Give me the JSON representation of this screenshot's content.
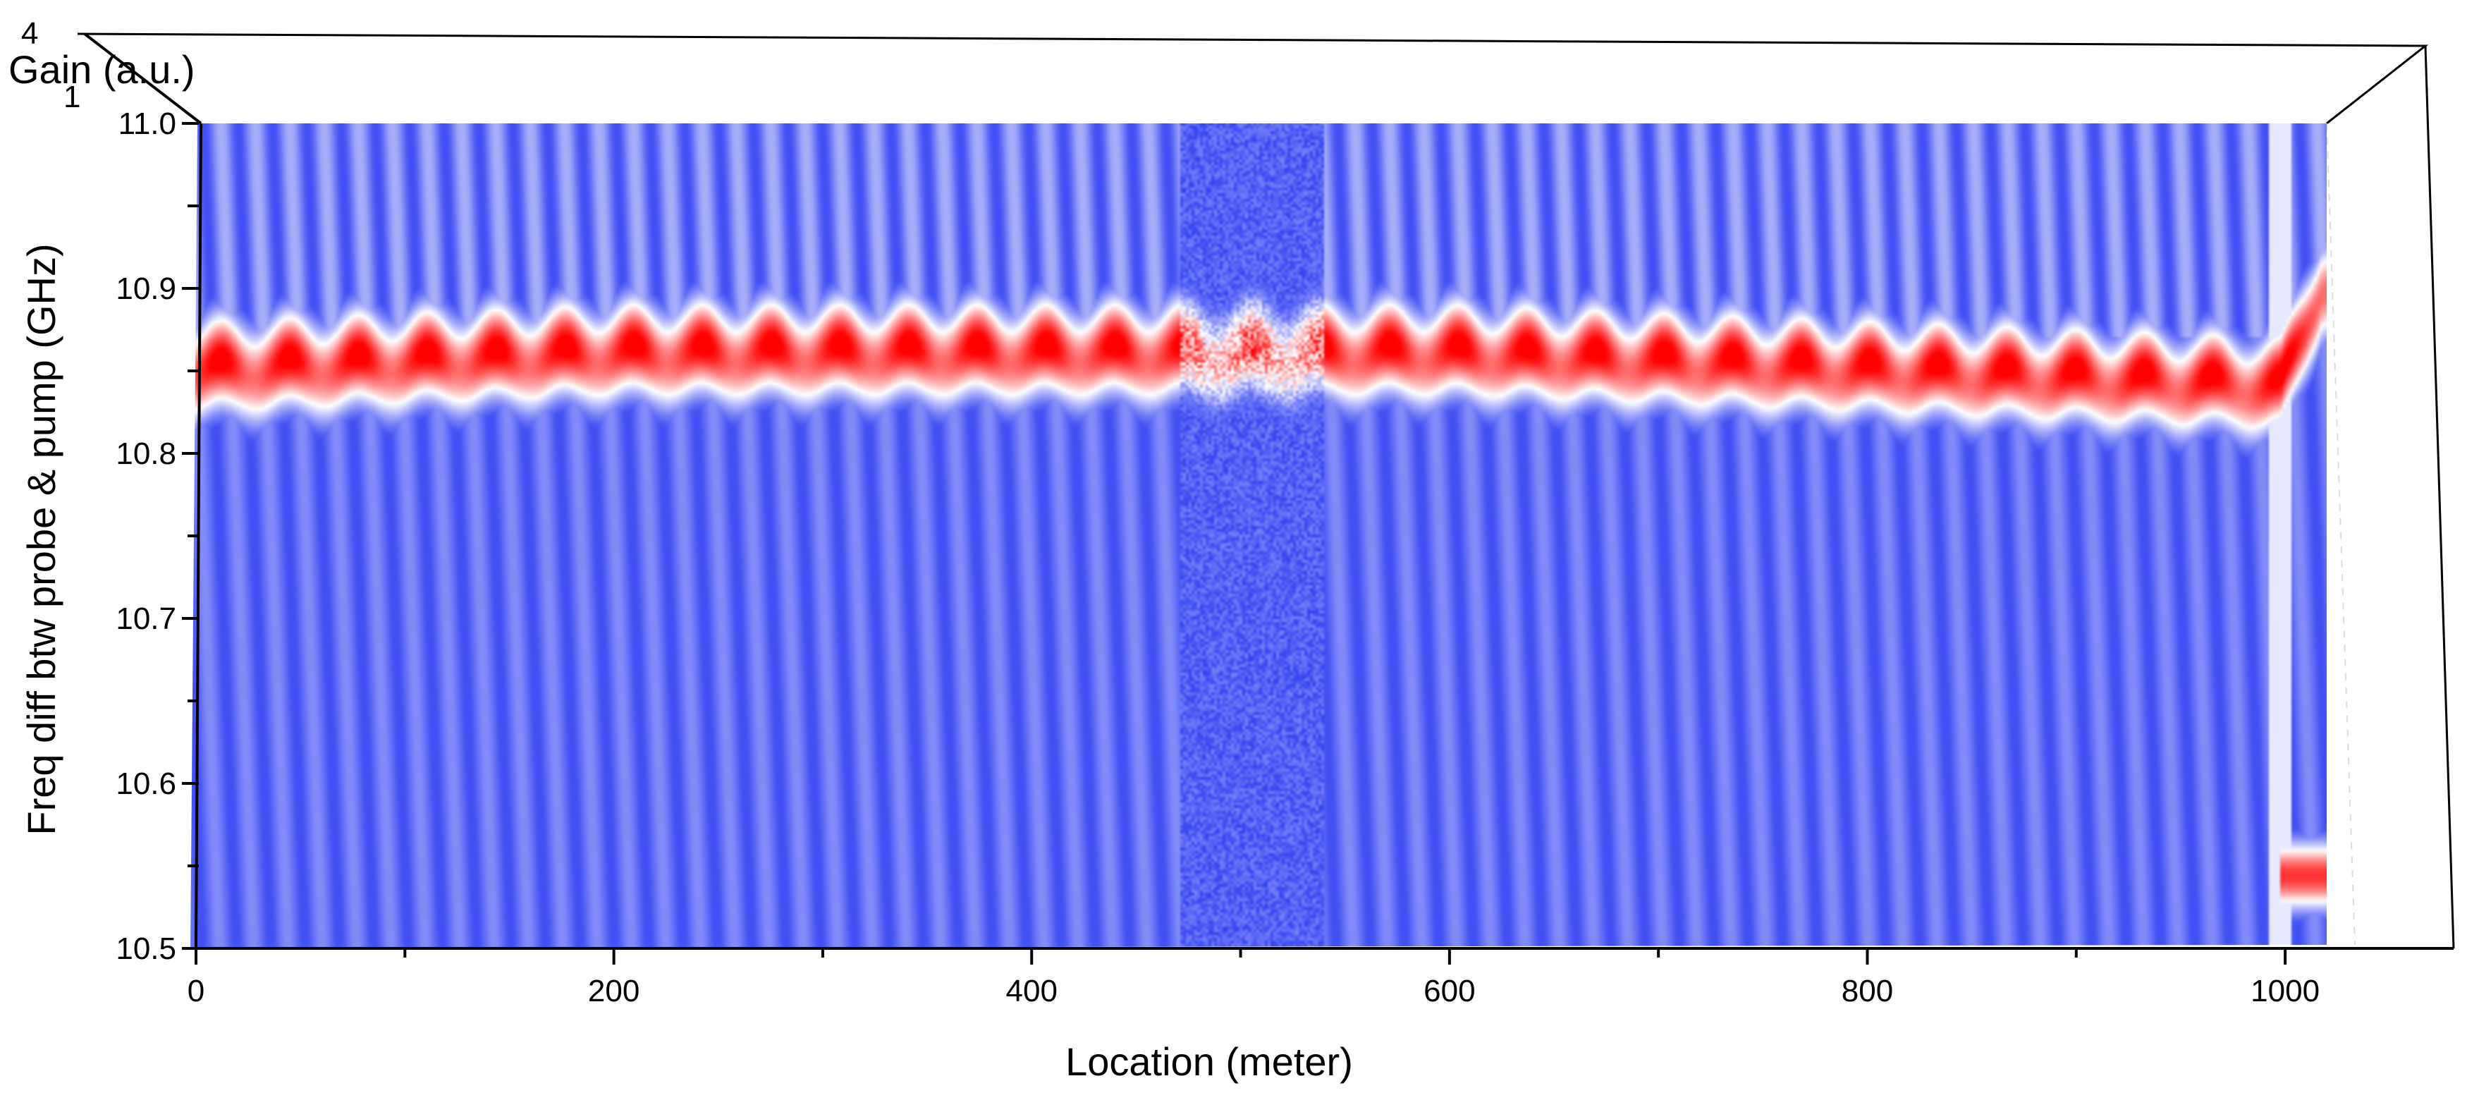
{
  "chart_data": {
    "type": "heatmap",
    "title": "",
    "xlabel": "Location (meter)",
    "ylabel": "Freq diff btw probe & pump (GHz)",
    "zlabel": "Gain (a.u.)",
    "xlim": [
      0,
      1030
    ],
    "ylim": [
      10.5,
      11.0
    ],
    "x_ticks": [
      "0",
      "200",
      "400",
      "600",
      "800",
      "1000"
    ],
    "y_ticks": [
      "10.5",
      "10.6",
      "10.7",
      "10.8",
      "10.9",
      "11.0"
    ],
    "z_ticks": [
      "4",
      "1"
    ],
    "colormap": {
      "low": "#0a1ef0",
      "mid": "#ffffff",
      "high": "#ff0000"
    },
    "gain_peak": {
      "description_points_x": [
        0,
        200,
        400,
        500,
        600,
        800,
        1000,
        1020
      ],
      "peak_freq_ghz": [
        10.85,
        10.86,
        10.86,
        10.86,
        10.86,
        10.85,
        10.84,
        10.9
      ],
      "linewidth_ghz": 0.05
    },
    "secondary_peak": {
      "x": 1020,
      "freq_ghz": 10.545
    },
    "noisy_region_m": [
      470,
      540
    ],
    "grid": false
  }
}
